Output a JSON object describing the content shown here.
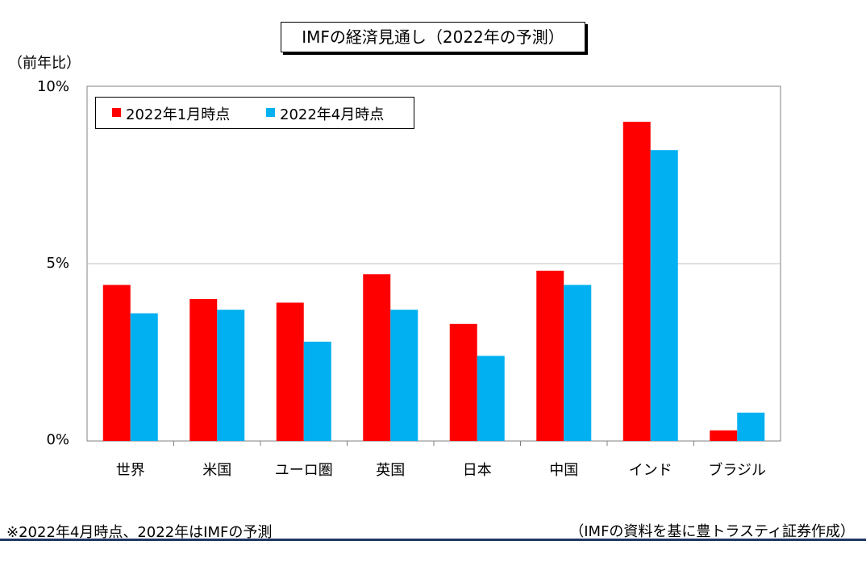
{
  "chart_data": {
    "type": "bar",
    "title": "IMFの経済見通し（2022年の予測）",
    "ylabel": "（前年比）",
    "ylim": [
      0,
      10
    ],
    "yticks": [
      "0%",
      "5%",
      "10%"
    ],
    "grid": true,
    "legend_position": "top-left",
    "categories": [
      "世界",
      "米国",
      "ユーロ圏",
      "英国",
      "日本",
      "中国",
      "インド",
      "ブラジル"
    ],
    "series": [
      {
        "name": "2022年1月時点",
        "color": "#ff0000",
        "values": [
          4.4,
          4.0,
          3.9,
          4.7,
          3.3,
          4.8,
          9.0,
          0.3
        ]
      },
      {
        "name": "2022年4月時点",
        "color": "#00b0f0",
        "values": [
          3.6,
          3.7,
          2.8,
          3.7,
          2.4,
          4.4,
          8.2,
          0.8
        ]
      }
    ]
  },
  "notes": {
    "left": "※2022年4月時点、2022年はIMFの予測",
    "right": "（IMFの資料を基に豊トラスティ証券作成）"
  }
}
